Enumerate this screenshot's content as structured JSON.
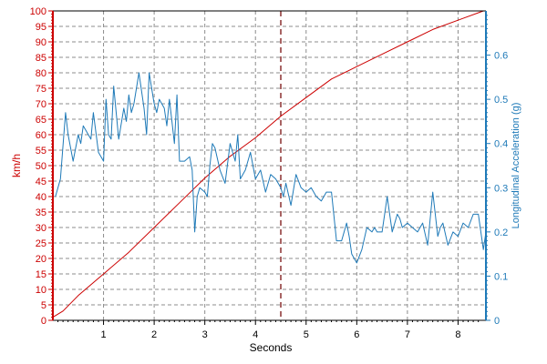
{
  "chart_data": {
    "type": "line",
    "xlabel": "Seconds",
    "xlim": [
      0,
      8.55
    ],
    "x_ticks": [
      1,
      2,
      3,
      4,
      5,
      6,
      7,
      8
    ],
    "cursor_x": 4.5,
    "grid": true,
    "y_left": {
      "label": "km/h",
      "range": [
        0,
        100
      ],
      "ticks": [
        0,
        5,
        10,
        15,
        20,
        25,
        30,
        35,
        40,
        45,
        50,
        55,
        60,
        65,
        70,
        75,
        80,
        85,
        90,
        95,
        100
      ],
      "color": "#cc0000"
    },
    "y_right": {
      "label": "Longitudinal Acceleration (g)",
      "range": [
        0,
        0.7
      ],
      "ticks": [
        0,
        0.1,
        0.2,
        0.3,
        0.4,
        0.5,
        0.6
      ],
      "color": "#1f7ab8"
    },
    "series": [
      {
        "axis": "left",
        "color": "#cc0000",
        "x": [
          0,
          0.2,
          0.5,
          1.0,
          1.5,
          2.0,
          2.5,
          3.0,
          3.5,
          4.0,
          4.5,
          5.0,
          5.5,
          6.0,
          6.5,
          7.0,
          7.5,
          8.0,
          8.5
        ],
        "values": [
          1,
          3,
          8,
          15,
          22,
          30,
          38,
          46,
          53,
          59,
          66,
          72,
          78,
          82,
          86,
          90,
          94,
          97,
          100
        ]
      },
      {
        "axis": "right",
        "color": "#1f7ab8",
        "x": [
          0.05,
          0.15,
          0.25,
          0.3,
          0.4,
          0.5,
          0.55,
          0.6,
          0.7,
          0.75,
          0.8,
          0.9,
          1.0,
          1.05,
          1.1,
          1.15,
          1.2,
          1.3,
          1.4,
          1.45,
          1.5,
          1.55,
          1.6,
          1.7,
          1.8,
          1.85,
          1.9,
          2.0,
          2.05,
          2.1,
          2.2,
          2.25,
          2.3,
          2.35,
          2.4,
          2.45,
          2.5,
          2.6,
          2.7,
          2.75,
          2.8,
          2.85,
          2.9,
          3.0,
          3.05,
          3.1,
          3.15,
          3.2,
          3.3,
          3.4,
          3.5,
          3.6,
          3.65,
          3.7,
          3.8,
          3.9,
          4.0,
          4.1,
          4.2,
          4.3,
          4.4,
          4.5,
          4.55,
          4.6,
          4.7,
          4.8,
          4.9,
          5.0,
          5.1,
          5.2,
          5.3,
          5.4,
          5.5,
          5.6,
          5.7,
          5.8,
          5.85,
          5.9,
          6.0,
          6.1,
          6.2,
          6.3,
          6.35,
          6.4,
          6.5,
          6.6,
          6.7,
          6.8,
          6.85,
          6.9,
          7.0,
          7.1,
          7.2,
          7.3,
          7.4,
          7.5,
          7.6,
          7.65,
          7.7,
          7.8,
          7.9,
          8.0,
          8.1,
          8.2,
          8.3,
          8.4,
          8.5,
          8.55
        ],
        "values": [
          0.28,
          0.32,
          0.47,
          0.42,
          0.36,
          0.42,
          0.4,
          0.44,
          0.42,
          0.41,
          0.47,
          0.38,
          0.36,
          0.5,
          0.42,
          0.41,
          0.53,
          0.41,
          0.48,
          0.45,
          0.51,
          0.47,
          0.49,
          0.56,
          0.48,
          0.42,
          0.56,
          0.49,
          0.47,
          0.5,
          0.48,
          0.44,
          0.5,
          0.45,
          0.4,
          0.51,
          0.36,
          0.36,
          0.37,
          0.34,
          0.2,
          0.28,
          0.3,
          0.29,
          0.28,
          0.35,
          0.4,
          0.39,
          0.34,
          0.31,
          0.4,
          0.36,
          0.42,
          0.32,
          0.34,
          0.38,
          0.32,
          0.34,
          0.29,
          0.33,
          0.32,
          0.3,
          0.28,
          0.31,
          0.26,
          0.33,
          0.3,
          0.29,
          0.3,
          0.28,
          0.27,
          0.29,
          0.29,
          0.18,
          0.18,
          0.22,
          0.19,
          0.15,
          0.13,
          0.16,
          0.21,
          0.2,
          0.21,
          0.2,
          0.2,
          0.28,
          0.2,
          0.24,
          0.23,
          0.21,
          0.22,
          0.21,
          0.2,
          0.22,
          0.17,
          0.29,
          0.19,
          0.21,
          0.22,
          0.17,
          0.2,
          0.19,
          0.22,
          0.21,
          0.24,
          0.24,
          0.16,
          0.2
        ]
      }
    ]
  }
}
